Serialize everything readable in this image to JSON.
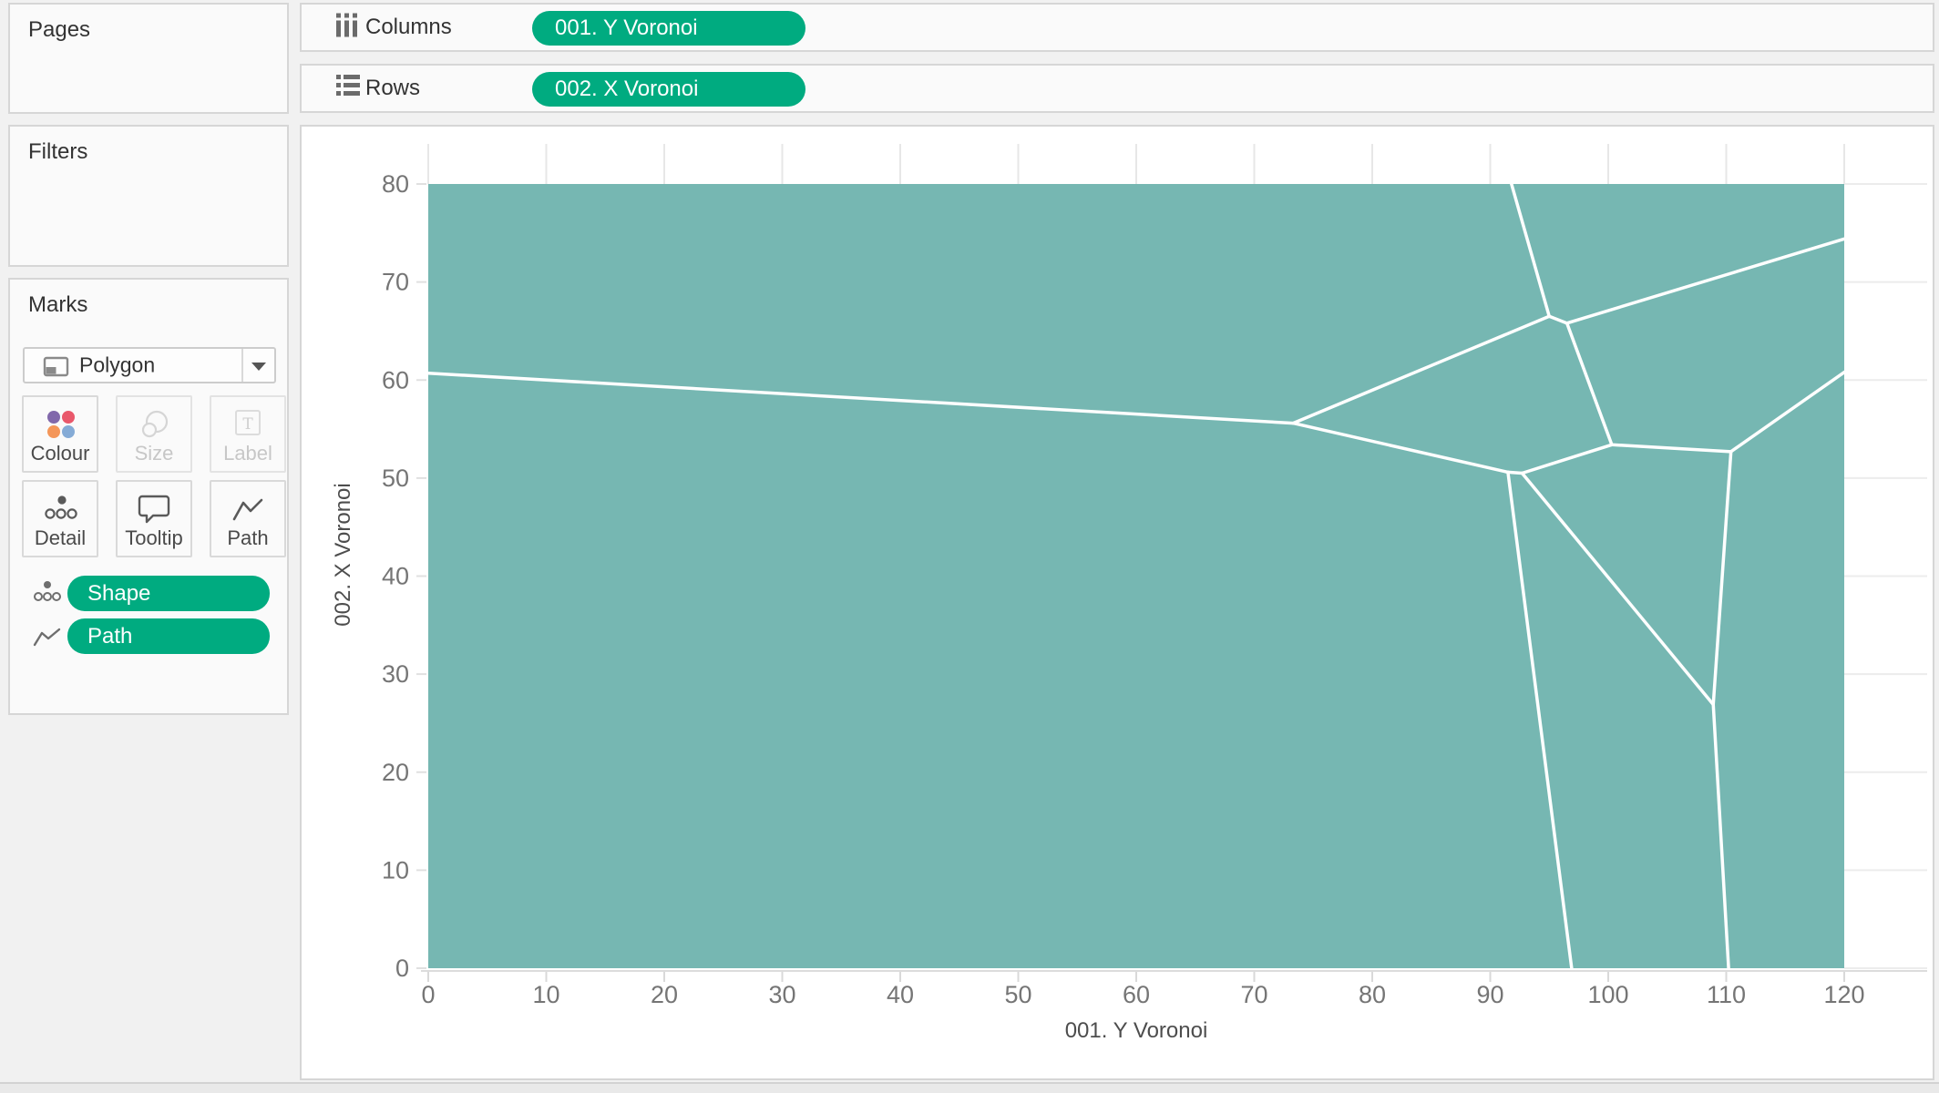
{
  "colors": {
    "pill_green": "#00ab80",
    "voronoi_teal": "#76b7b2",
    "voronoi_edge": "#ffffff",
    "panel_border": "#d6d6d6",
    "colour_icon_dots": [
      "#8168ab",
      "#e9586b",
      "#f49659",
      "#85abd6"
    ]
  },
  "icons": {
    "columns_shelf": "grid-columns-icon",
    "rows_shelf": "list-rows-icon",
    "mark_type": "polygon-icon",
    "dropdown": "chevron-down-icon",
    "colour": "colour-dots-icon",
    "size": "overlapping-circles-icon",
    "label": "text-box-icon",
    "detail": "detail-dots-icon",
    "tooltip": "speech-bubble-icon",
    "path": "zigzag-line-icon"
  },
  "shelves": {
    "columns": {
      "label": "Columns",
      "pill": "001. Y Voronoi"
    },
    "rows": {
      "label": "Rows",
      "pill": "002. X Voronoi"
    }
  },
  "panels": {
    "pages": {
      "title": "Pages"
    },
    "filters": {
      "title": "Filters"
    },
    "marks": {
      "title": "Marks",
      "mark_type": "Polygon",
      "buttons": [
        {
          "label": "Colour",
          "enabled": true
        },
        {
          "label": "Size",
          "enabled": false
        },
        {
          "label": "Label",
          "enabled": false
        },
        {
          "label": "Detail",
          "enabled": true
        },
        {
          "label": "Tooltip",
          "enabled": true
        },
        {
          "label": "Path",
          "enabled": true
        }
      ],
      "pills": [
        {
          "label": "Shape"
        },
        {
          "label": "Path"
        }
      ]
    }
  },
  "chart_data": {
    "type": "voronoi_polygon",
    "xlabel": "001. Y Voronoi",
    "ylabel": "002. X Voronoi",
    "xlim": [
      0,
      120
    ],
    "ylim": [
      0,
      80
    ],
    "x_ticks": [
      0,
      10,
      20,
      30,
      40,
      50,
      60,
      70,
      80,
      90,
      100,
      110,
      120
    ],
    "y_ticks": [
      0,
      10,
      20,
      30,
      40,
      50,
      60,
      70,
      80
    ],
    "grid": true,
    "fill_color": "#76b7b2",
    "edge_color": "#ffffff",
    "edge_width": 3.5,
    "cell_edges": [
      [
        [
          0,
          60.7
        ],
        [
          73.3,
          55.6
        ]
      ],
      [
        [
          73.3,
          55.6
        ],
        [
          91.5,
          50.6
        ]
      ],
      [
        [
          73.3,
          55.6
        ],
        [
          95.0,
          66.5
        ]
      ],
      [
        [
          91.8,
          80
        ],
        [
          95.0,
          66.5
        ]
      ],
      [
        [
          95.0,
          66.5
        ],
        [
          96.5,
          65.8
        ]
      ],
      [
        [
          96.5,
          65.8
        ],
        [
          120,
          74.4
        ]
      ],
      [
        [
          96.5,
          65.8
        ],
        [
          100.3,
          53.4
        ]
      ],
      [
        [
          91.5,
          50.6
        ],
        [
          92.7,
          50.5
        ]
      ],
      [
        [
          92.7,
          50.5
        ],
        [
          100.3,
          53.4
        ]
      ],
      [
        [
          100.3,
          53.4
        ],
        [
          110.4,
          52.7
        ]
      ],
      [
        [
          110.4,
          52.7
        ],
        [
          120,
          60.8
        ]
      ],
      [
        [
          110.4,
          52.7
        ],
        [
          108.9,
          26.9
        ]
      ],
      [
        [
          91.5,
          50.6
        ],
        [
          96.9,
          0
        ]
      ],
      [
        [
          92.7,
          50.5
        ],
        [
          108.9,
          26.9
        ]
      ],
      [
        [
          108.9,
          26.9
        ],
        [
          110.2,
          0
        ]
      ]
    ]
  }
}
